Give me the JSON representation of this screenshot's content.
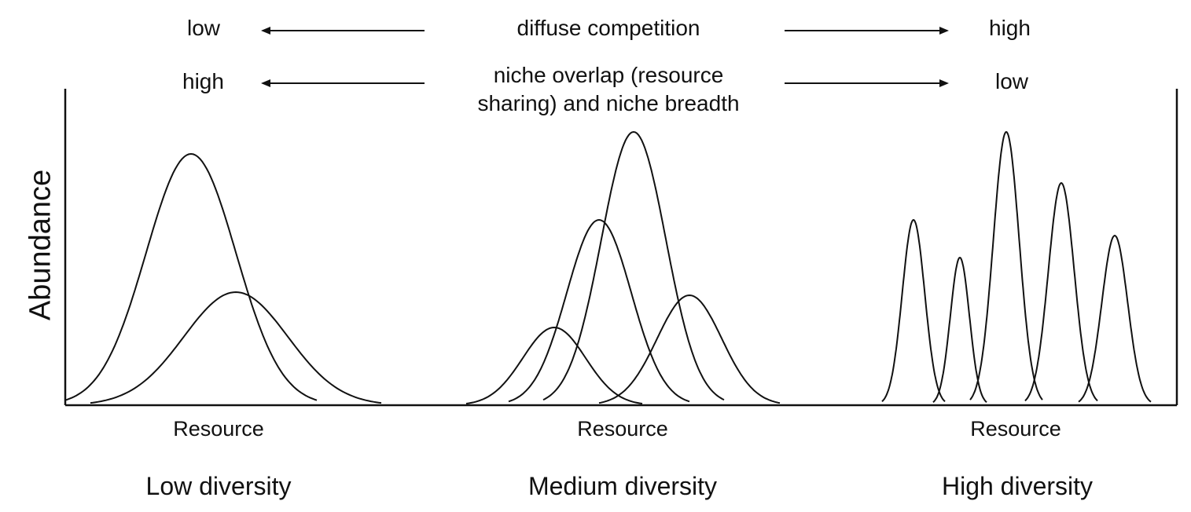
{
  "header": {
    "row1": {
      "left": "low",
      "center": "diffuse competition",
      "right": "high"
    },
    "row2": {
      "left": "high",
      "center_line1": "niche overlap (resource",
      "center_line2": "sharing) and niche breadth",
      "right": "low"
    }
  },
  "axis": {
    "y_label": "Abundance"
  },
  "panels": [
    {
      "x_label": "Resource",
      "caption": "Low diversity",
      "peak_count": 2
    },
    {
      "x_label": "Resource",
      "caption": "Medium diversity",
      "peak_count": 4
    },
    {
      "x_label": "Resource",
      "caption": "High diversity",
      "peak_count": 5
    }
  ],
  "colors": {
    "line": "#111111",
    "background": "#ffffff"
  }
}
